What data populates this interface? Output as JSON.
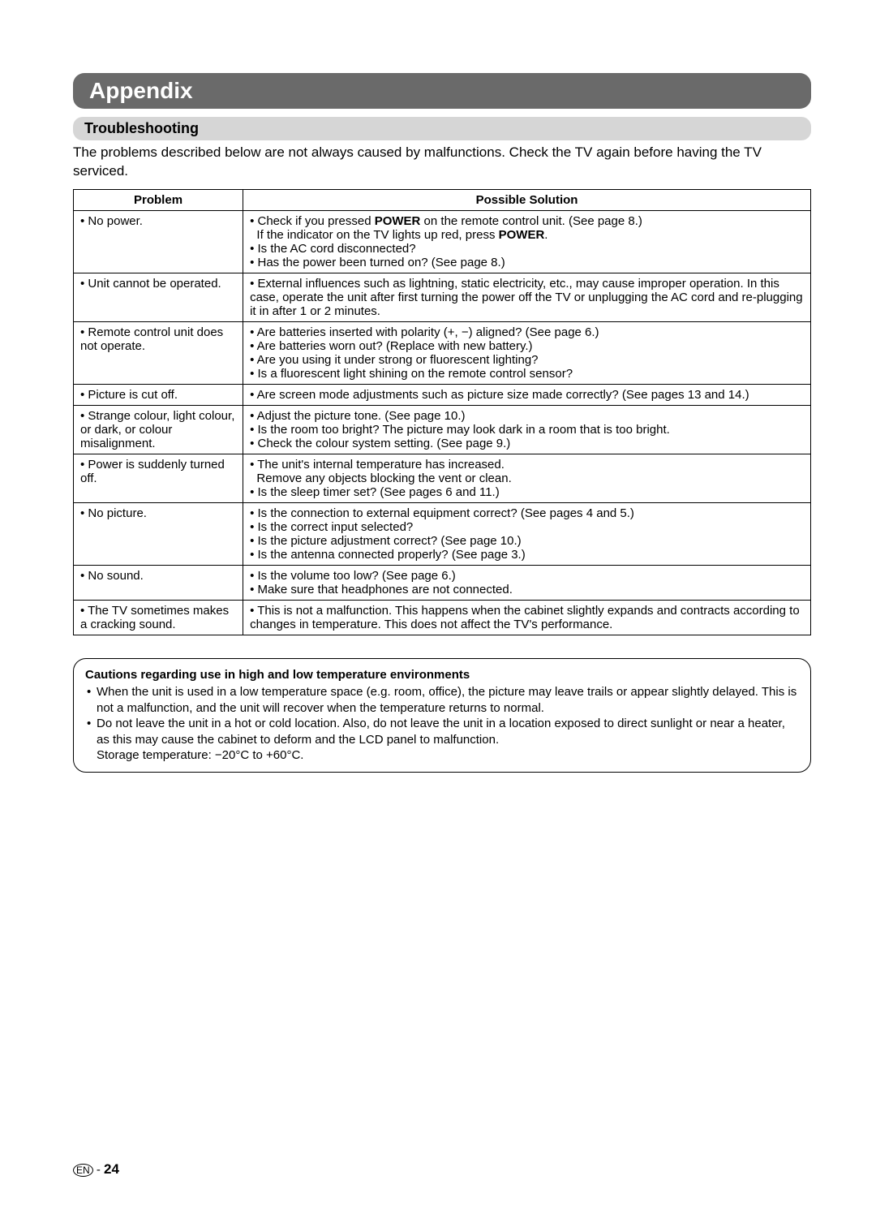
{
  "header": {
    "title": "Appendix",
    "title_bg_color": "#6a6a6a",
    "title_text_color": "#ffffff",
    "title_fontsize": 28
  },
  "subheader": {
    "title": "Troubleshooting",
    "bg_color": "#d6d6d6",
    "fontsize": 18
  },
  "intro": "The problems described below are not always caused by malfunctions. Check the TV again before having the TV serviced.",
  "table": {
    "headers": [
      "Problem",
      "Possible Solution"
    ],
    "border_color": "#000000",
    "fontsize": 15,
    "rows": [
      {
        "problem": "• No power.",
        "solutions_html": "• Check if you pressed <b>POWER</b> on the remote control unit. (See page 8.)<br>&nbsp;&nbsp;If the indicator on the TV lights up red, press <b>POWER</b>.<br>• Is the AC cord disconnected?<br>• Has the power been turned on? (See page 8.)"
      },
      {
        "problem": "• Unit cannot be operated.",
        "solutions_html": "• External influences such as lightning, static electricity, etc., may cause improper operation. In this case, operate the unit after first turning the power off the TV or unplugging the AC cord and re-plugging it in after 1 or 2 minutes."
      },
      {
        "problem": "• Remote control unit does not operate.",
        "solutions_html": "• Are batteries inserted with polarity (+, −) aligned? (See page 6.)<br>• Are batteries worn out? (Replace with new battery.)<br>• Are you using it under strong or fluorescent lighting?<br>• Is a fluorescent light shining on the remote control sensor?"
      },
      {
        "problem": "• Picture is cut off.",
        "solutions_html": "• Are screen mode adjustments such as picture size made correctly? (See pages 13 and 14.)"
      },
      {
        "problem": "• Strange colour, light colour, or dark, or colour misalignment.",
        "solutions_html": "• Adjust the picture tone. (See page 10.)<br>• Is the room too bright? The picture may look dark in a room that is too bright.<br>• Check the colour system setting. (See page 9.)"
      },
      {
        "problem": "• Power is suddenly turned off.",
        "solutions_html": "• The unit's internal temperature has increased.<br>&nbsp;&nbsp;Remove any objects blocking the vent or clean.<br>• Is the sleep timer set? (See pages 6 and 11.)"
      },
      {
        "problem": "• No picture.",
        "solutions_html": "• Is the connection to external equipment correct? (See pages 4 and 5.)<br>• Is the correct input selected?<br>• Is the picture adjustment correct? (See page 10.)<br>• Is the antenna connected properly? (See page 3.)"
      },
      {
        "problem": "• No sound.",
        "solutions_html": "• Is the volume too low? (See page 6.)<br>• Make sure that headphones are not connected."
      },
      {
        "problem": "• The TV sometimes makes a cracking sound.",
        "solutions_html": "• This is not a malfunction. This happens when the cabinet slightly expands and contracts according to changes in temperature. This does not affect the TV's performance."
      }
    ]
  },
  "caution_box": {
    "title": "Cautions regarding use in high and low temperature environments",
    "border_radius": 16,
    "items": [
      "When the unit is used in a low temperature space (e.g. room, office), the picture may leave trails or appear slightly delayed. This is not a malfunction, and the unit will recover when the temperature returns to normal.",
      "Do not leave the unit in a hot or cold location. Also, do not leave the unit in a location exposed to direct sunlight or near a heater, as this may cause the cabinet to deform and the LCD panel to malfunction.<br>Storage temperature: −20°C to +60°C."
    ]
  },
  "footer": {
    "lang": "EN",
    "sep": " - ",
    "page": "24"
  }
}
